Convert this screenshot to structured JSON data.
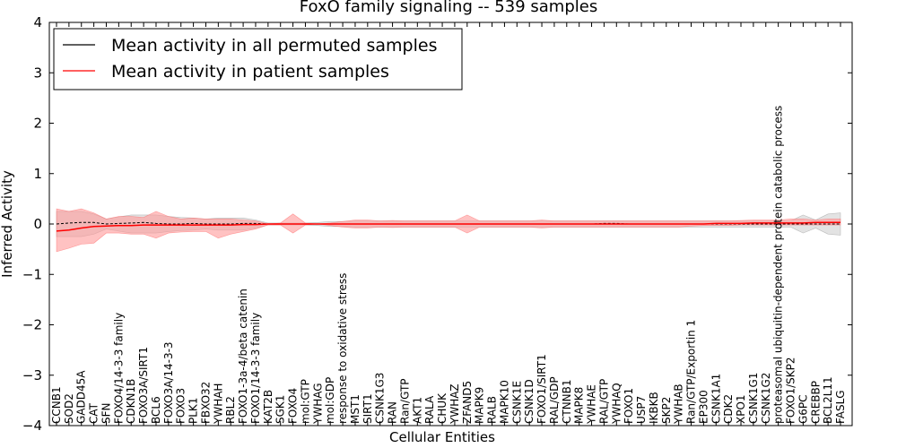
{
  "chart_data": {
    "type": "line",
    "title": "FoxO family signaling -- 539 samples",
    "xlabel": "Cellular Entities",
    "ylabel": "Inferred Activity",
    "ylim": [
      -4,
      4
    ],
    "yticks": [
      4,
      3,
      2,
      1,
      0,
      -1,
      -2,
      -3,
      -4
    ],
    "ytick_labels": [
      "4",
      "3",
      "2",
      "1",
      "0",
      "−1",
      "−2",
      "−3",
      "−4"
    ],
    "grid": false,
    "legend_position": "top-left",
    "categories": [
      "CCNB1",
      "SOD2",
      "GADD45A",
      "CAT",
      "SFN",
      "FOXO4/14-3-3 family",
      "CDKN1B",
      "FOXO3A/SIRT1",
      "BCL6",
      "FOXO3A/14-3-3",
      "FOXO3",
      "PLK1",
      "FBXO32",
      "YWHAH",
      "RBL2",
      "FOXO1-3a-4/beta catenin",
      "FOXO1/14-3-3 family",
      "KAT2B",
      "SGK1",
      "FOXO4",
      "mol:GTP",
      "YWHAG",
      "mol:GDP",
      "response to oxidative stress",
      "MST1",
      "SIRT1",
      "CSNK1G3",
      "RAN",
      "Ran/GTP",
      "AKT1",
      "RALA",
      "CHUK",
      "YWHAZ",
      "ZFAND5",
      "MAPK9",
      "RALB",
      "MAPK10",
      "CSNK1E",
      "CSNK1D",
      "FOXO1/SIRT1",
      "RAL/GDP",
      "CTNNB1",
      "MAPK8",
      "YWHAE",
      "RAL/GTP",
      "YWHAQ",
      "FOXO1",
      "USP7",
      "IKBKB",
      "SKP2",
      "YWHAB",
      "Ran/GTP/Exportin 1",
      "EP300",
      "CSNK1A1",
      "CDK2",
      "XPO1",
      "CSNK1G1",
      "CSNK1G2",
      "proteasomal ubiquitin-dependent protein catabolic process",
      "FOXO1/SKP2",
      "G6PC",
      "CREBBP",
      "BCL2L11",
      "FASLG"
    ],
    "series": [
      {
        "name": "Mean activity in all permuted samples",
        "color": "#000000",
        "values": [
          0.0,
          0.02,
          0.03,
          0.03,
          0.0,
          0.01,
          0.02,
          0.03,
          0.01,
          0.0,
          0.0,
          0.01,
          0.0,
          0.0,
          0.0,
          0.01,
          0.01,
          0.0,
          0.0,
          0.0,
          0.0,
          0.0,
          0.0,
          0.0,
          0.0,
          0.0,
          0.0,
          0.0,
          0.0,
          0.0,
          0.0,
          0.0,
          0.0,
          0.0,
          0.0,
          0.0,
          0.0,
          0.0,
          0.0,
          0.0,
          0.0,
          0.0,
          0.0,
          0.0,
          0.01,
          0.01,
          0.0,
          0.0,
          0.0,
          0.0,
          0.0,
          0.0,
          0.0,
          0.0,
          0.0,
          0.0,
          0.0,
          0.0,
          0.0,
          0.0,
          0.0,
          0.0,
          0.0,
          0.0
        ],
        "band_upper": [
          0.25,
          0.25,
          0.25,
          0.2,
          0.1,
          0.14,
          0.18,
          0.18,
          0.18,
          0.15,
          0.13,
          0.12,
          0.1,
          0.12,
          0.12,
          0.12,
          0.08,
          0.02,
          0.02,
          0.02,
          0.02,
          0.03,
          0.05,
          0.05,
          0.06,
          0.06,
          0.06,
          0.06,
          0.06,
          0.06,
          0.06,
          0.06,
          0.06,
          0.06,
          0.06,
          0.06,
          0.06,
          0.06,
          0.06,
          0.06,
          0.06,
          0.06,
          0.06,
          0.06,
          0.06,
          0.06,
          0.06,
          0.06,
          0.06,
          0.06,
          0.06,
          0.06,
          0.06,
          0.06,
          0.06,
          0.06,
          0.06,
          0.06,
          0.06,
          0.06,
          0.18,
          0.08,
          0.2,
          0.22
        ],
        "band_lower": [
          -0.25,
          -0.25,
          -0.25,
          -0.2,
          -0.1,
          -0.14,
          -0.18,
          -0.18,
          -0.18,
          -0.15,
          -0.13,
          -0.12,
          -0.1,
          -0.12,
          -0.12,
          -0.12,
          -0.08,
          -0.02,
          -0.02,
          -0.02,
          -0.02,
          -0.03,
          -0.05,
          -0.05,
          -0.06,
          -0.06,
          -0.06,
          -0.06,
          -0.06,
          -0.06,
          -0.06,
          -0.06,
          -0.06,
          -0.06,
          -0.06,
          -0.06,
          -0.06,
          -0.06,
          -0.06,
          -0.06,
          -0.06,
          -0.06,
          -0.06,
          -0.06,
          -0.06,
          -0.06,
          -0.06,
          -0.06,
          -0.06,
          -0.06,
          -0.06,
          -0.06,
          -0.06,
          -0.06,
          -0.06,
          -0.06,
          -0.06,
          -0.06,
          -0.06,
          -0.06,
          -0.18,
          -0.08,
          -0.2,
          -0.22
        ],
        "band_color": "#cccccc"
      },
      {
        "name": "Mean activity in patient samples",
        "color": "#ff0000",
        "values": [
          -0.14,
          -0.12,
          -0.08,
          -0.05,
          -0.04,
          -0.03,
          -0.03,
          -0.02,
          -0.02,
          -0.02,
          -0.02,
          -0.02,
          -0.02,
          -0.02,
          -0.02,
          -0.01,
          -0.01,
          0.0,
          0.0,
          0.0,
          0.0,
          0.0,
          0.0,
          0.0,
          0.0,
          0.0,
          0.0,
          0.0,
          0.0,
          0.0,
          0.0,
          0.0,
          0.0,
          0.0,
          0.0,
          0.0,
          0.0,
          0.0,
          0.0,
          0.0,
          0.0,
          0.0,
          0.0,
          0.0,
          0.0,
          0.0,
          0.0,
          0.0,
          0.0,
          0.0,
          0.0,
          0.0,
          0.0,
          0.01,
          0.01,
          0.01,
          0.02,
          0.02,
          0.02,
          0.02,
          0.02,
          0.03,
          0.03,
          0.03
        ],
        "band_upper": [
          0.3,
          0.25,
          0.3,
          0.22,
          0.1,
          0.15,
          0.15,
          0.13,
          0.25,
          0.15,
          0.1,
          0.12,
          0.1,
          0.1,
          0.1,
          0.08,
          0.06,
          0.0,
          0.02,
          0.2,
          0.02,
          0.0,
          0.02,
          0.05,
          0.08,
          0.08,
          0.06,
          0.07,
          0.06,
          0.06,
          0.06,
          0.06,
          0.06,
          0.18,
          0.06,
          0.06,
          0.06,
          0.06,
          0.06,
          0.08,
          0.06,
          0.06,
          0.06,
          0.06,
          0.06,
          0.06,
          0.06,
          0.06,
          0.06,
          0.06,
          0.06,
          0.06,
          0.06,
          0.06,
          0.06,
          0.07,
          0.08,
          0.08,
          0.08,
          0.1,
          0.1,
          0.08,
          0.1,
          0.1
        ],
        "band_lower": [
          -0.55,
          -0.48,
          -0.4,
          -0.38,
          -0.18,
          -0.18,
          -0.2,
          -0.2,
          -0.28,
          -0.18,
          -0.16,
          -0.15,
          -0.15,
          -0.28,
          -0.2,
          -0.15,
          -0.1,
          -0.02,
          -0.02,
          -0.18,
          -0.02,
          0.0,
          -0.03,
          -0.06,
          -0.08,
          -0.08,
          -0.06,
          -0.07,
          -0.06,
          -0.06,
          -0.06,
          -0.06,
          -0.06,
          -0.18,
          -0.06,
          -0.06,
          -0.06,
          -0.06,
          -0.06,
          -0.08,
          -0.06,
          -0.06,
          -0.06,
          -0.06,
          -0.06,
          -0.06,
          -0.06,
          -0.06,
          -0.06,
          -0.06,
          -0.06,
          -0.04,
          -0.03,
          -0.03,
          -0.03,
          -0.02,
          -0.02,
          -0.02,
          -0.02,
          -0.02,
          -0.02,
          -0.02,
          -0.02,
          -0.02
        ],
        "band_color": "#ff9999"
      }
    ]
  }
}
